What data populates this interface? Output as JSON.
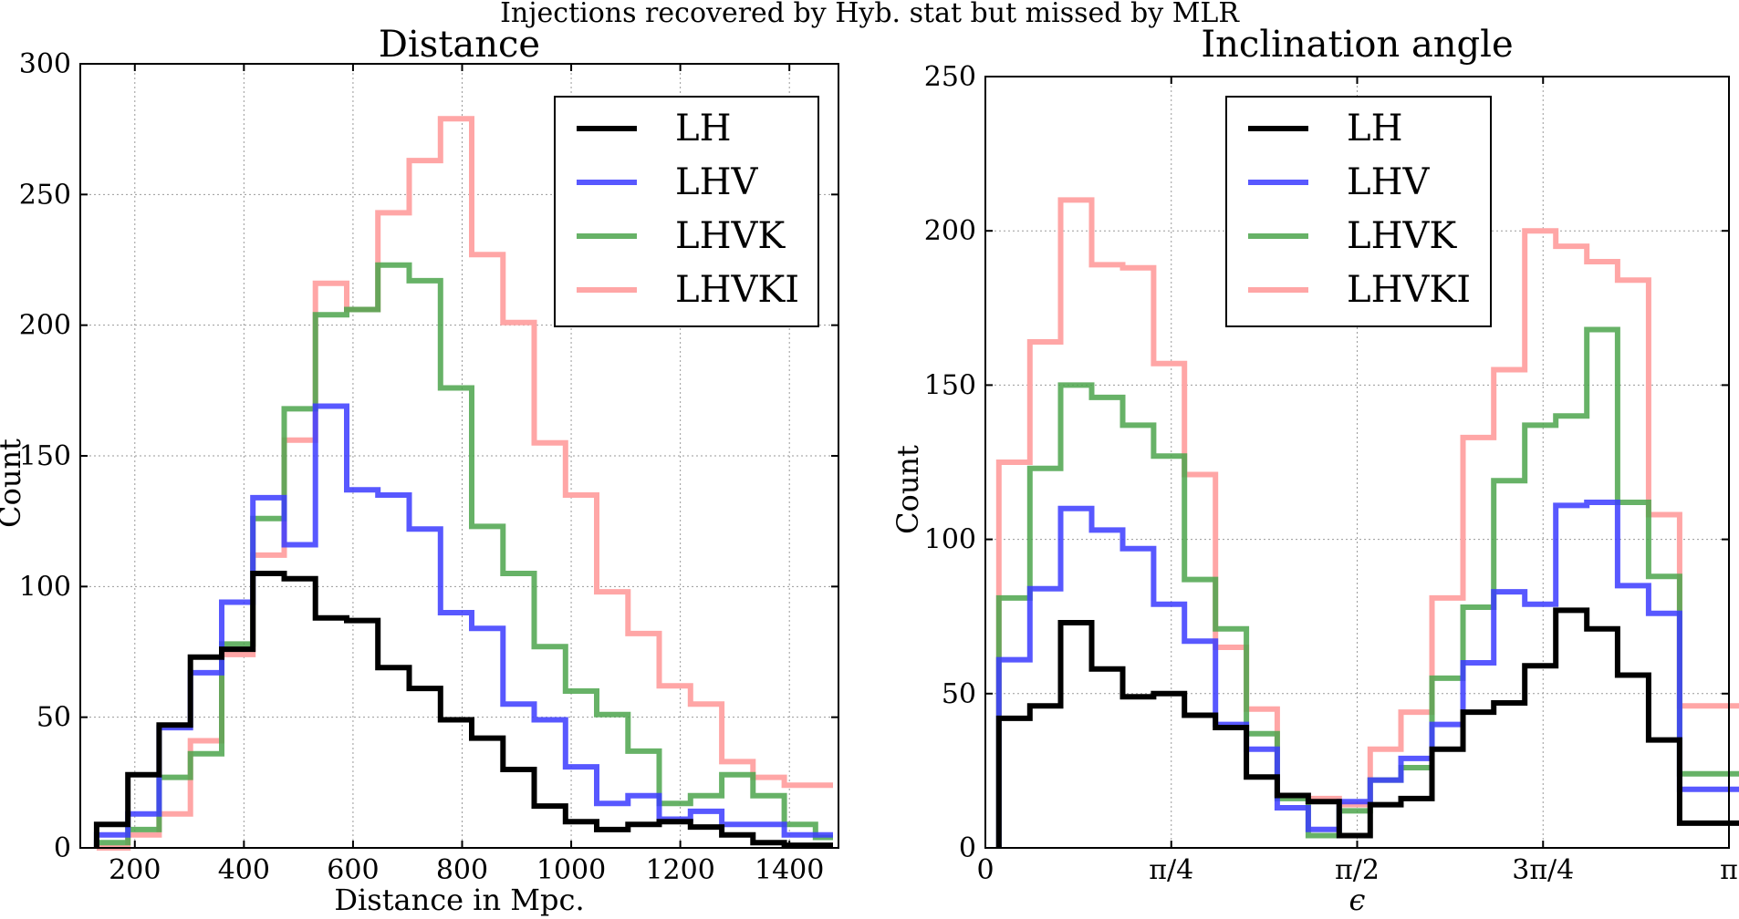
{
  "suptitle": "Injections recovered by Hyb. stat but missed by MLR",
  "colors": {
    "LH": "#000000",
    "LHV": "#3b3bff",
    "LHVK": "#4ca54c",
    "LHVKI": "#ffa6a6"
  },
  "chart_data": [
    {
      "type": "step",
      "title": "Distance",
      "xlabel": "Distance in Mpc.",
      "ylabel": "Count",
      "xlim": [
        100,
        1490
      ],
      "ylim": [
        0,
        300
      ],
      "xticks": [
        200,
        400,
        600,
        800,
        1000,
        1200,
        1400
      ],
      "xtick_labels": [
        "200",
        "400",
        "600",
        "800",
        "1000",
        "1200",
        "1400"
      ],
      "yticks": [
        0,
        50,
        100,
        150,
        200,
        250,
        300
      ],
      "ytick_labels": [
        "0",
        "50",
        "100",
        "150",
        "200",
        "250",
        "300"
      ],
      "grid": true,
      "legend_position": "top-right",
      "edges": [
        130,
        187.3,
        244.6,
        301.9,
        359.2,
        416.5,
        473.8,
        531.1,
        588.4,
        645.7,
        703,
        760.3,
        817.6,
        874.9,
        932.2,
        989.5,
        1046.8,
        1104.1,
        1161.4,
        1218.7,
        1276,
        1333.3,
        1390.6,
        1447.9,
        1480
      ],
      "series": [
        {
          "name": "LH",
          "values": [
            9,
            28,
            47,
            73,
            76,
            105,
            103,
            88,
            87,
            69,
            61,
            49,
            42,
            30,
            16,
            10,
            7,
            9,
            10,
            8,
            5,
            2,
            1,
            1
          ]
        },
        {
          "name": "LHV",
          "values": [
            5,
            13,
            46,
            67,
            94,
            134,
            116,
            169,
            137,
            135,
            122,
            90,
            84,
            55,
            49,
            31,
            17,
            20,
            11,
            14,
            9,
            9,
            5,
            5
          ]
        },
        {
          "name": "LHVK",
          "values": [
            2,
            7,
            27,
            36,
            78,
            126,
            168,
            204,
            206,
            223,
            217,
            176,
            123,
            105,
            77,
            60,
            51,
            37,
            17,
            20,
            28,
            20,
            9,
            4
          ]
        },
        {
          "name": "LHVKI",
          "values": [
            0,
            5,
            13,
            41,
            74,
            112,
            156,
            216,
            206,
            243,
            263,
            279,
            227,
            201,
            155,
            135,
            98,
            82,
            62,
            55,
            33,
            27,
            24,
            24
          ]
        }
      ]
    },
    {
      "type": "step",
      "title": "Inclination angle",
      "xlabel": "ϵ",
      "ylabel": "Count",
      "xlim": [
        0,
        3.14159
      ],
      "ylim": [
        0,
        250
      ],
      "xticks": [
        0,
        0.7854,
        1.5708,
        2.3562,
        3.14159
      ],
      "xtick_labels": [
        "0",
        "π/4",
        "π/2",
        "3π/4",
        "π"
      ],
      "yticks": [
        0,
        50,
        100,
        150,
        200,
        250
      ],
      "ytick_labels": [
        "0",
        "50",
        "100",
        "150",
        "200",
        "250"
      ],
      "grid": true,
      "legend_position": "top-left",
      "edges": [
        0.057,
        0.188,
        0.318,
        0.449,
        0.58,
        0.711,
        0.841,
        0.972,
        1.103,
        1.233,
        1.364,
        1.495,
        1.626,
        1.756,
        1.887,
        2.018,
        2.148,
        2.279,
        2.41,
        2.541,
        2.671,
        2.802,
        2.933,
        3.064,
        3.194
      ],
      "series": [
        {
          "name": "LH",
          "values": [
            42,
            46,
            73,
            58,
            49,
            50,
            43,
            39,
            23,
            17,
            15,
            4,
            14,
            16,
            32,
            44,
            47,
            59,
            77,
            71,
            56,
            35,
            8,
            8
          ]
        },
        {
          "name": "LHV",
          "values": [
            61,
            84,
            110,
            103,
            97,
            79,
            67,
            40,
            32,
            13,
            6,
            15,
            22,
            29,
            40,
            60,
            83,
            79,
            111,
            112,
            85,
            76,
            19,
            19
          ]
        },
        {
          "name": "LHVK",
          "values": [
            81,
            123,
            150,
            146,
            137,
            127,
            87,
            71,
            37,
            16,
            4,
            12,
            22,
            26,
            55,
            78,
            119,
            137,
            140,
            168,
            112,
            88,
            24,
            24
          ]
        },
        {
          "name": "LHVKI",
          "values": [
            125,
            164,
            210,
            189,
            188,
            157,
            121,
            65,
            45,
            17,
            16,
            14,
            32,
            44,
            81,
            133,
            155,
            200,
            195,
            190,
            184,
            108,
            46,
            46
          ]
        }
      ]
    }
  ]
}
